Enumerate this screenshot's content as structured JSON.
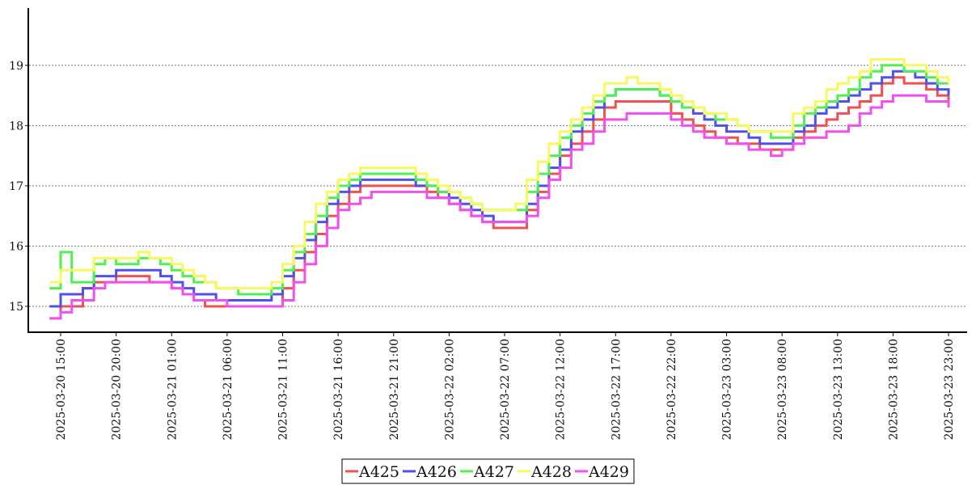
{
  "chart_data": {
    "type": "line",
    "step": true,
    "x": [
      "2025-03-20 14:00",
      "2025-03-20 15:00",
      "2025-03-20 16:00",
      "2025-03-20 17:00",
      "2025-03-20 18:00",
      "2025-03-20 19:00",
      "2025-03-20 20:00",
      "2025-03-20 21:00",
      "2025-03-20 22:00",
      "2025-03-20 23:00",
      "2025-03-21 00:00",
      "2025-03-21 01:00",
      "2025-03-21 02:00",
      "2025-03-21 03:00",
      "2025-03-21 04:00",
      "2025-03-21 05:00",
      "2025-03-21 06:00",
      "2025-03-21 07:00",
      "2025-03-21 08:00",
      "2025-03-21 09:00",
      "2025-03-21 10:00",
      "2025-03-21 11:00",
      "2025-03-21 12:00",
      "2025-03-21 13:00",
      "2025-03-21 14:00",
      "2025-03-21 15:00",
      "2025-03-21 16:00",
      "2025-03-21 17:00",
      "2025-03-21 18:00",
      "2025-03-21 19:00",
      "2025-03-21 20:00",
      "2025-03-21 21:00",
      "2025-03-21 22:00",
      "2025-03-21 23:00",
      "2025-03-22 00:00",
      "2025-03-22 01:00",
      "2025-03-22 02:00",
      "2025-03-22 03:00",
      "2025-03-22 04:00",
      "2025-03-22 05:00",
      "2025-03-22 06:00",
      "2025-03-22 07:00",
      "2025-03-22 08:00",
      "2025-03-22 09:00",
      "2025-03-22 10:00",
      "2025-03-22 11:00",
      "2025-03-22 12:00",
      "2025-03-22 13:00",
      "2025-03-22 14:00",
      "2025-03-22 15:00",
      "2025-03-22 16:00",
      "2025-03-22 17:00",
      "2025-03-22 18:00",
      "2025-03-22 19:00",
      "2025-03-22 20:00",
      "2025-03-22 21:00",
      "2025-03-22 22:00",
      "2025-03-22 23:00",
      "2025-03-23 00:00",
      "2025-03-23 01:00",
      "2025-03-23 02:00",
      "2025-03-23 03:00",
      "2025-03-23 04:00",
      "2025-03-23 05:00",
      "2025-03-23 06:00",
      "2025-03-23 07:00",
      "2025-03-23 08:00",
      "2025-03-23 09:00",
      "2025-03-23 10:00",
      "2025-03-23 11:00",
      "2025-03-23 12:00",
      "2025-03-23 13:00",
      "2025-03-23 14:00",
      "2025-03-23 15:00",
      "2025-03-23 16:00",
      "2025-03-23 17:00",
      "2025-03-23 18:00",
      "2025-03-23 19:00",
      "2025-03-23 20:00",
      "2025-03-23 21:00",
      "2025-03-23 22:00",
      "2025-03-23 23:00"
    ],
    "xticks": [
      "2025-03-20 15:00",
      "2025-03-20 20:00",
      "2025-03-21 01:00",
      "2025-03-21 06:00",
      "2025-03-21 11:00",
      "2025-03-21 16:00",
      "2025-03-21 21:00",
      "2025-03-22 02:00",
      "2025-03-22 07:00",
      "2025-03-22 12:00",
      "2025-03-22 17:00",
      "2025-03-22 22:00",
      "2025-03-23 03:00",
      "2025-03-23 08:00",
      "2025-03-23 13:00",
      "2025-03-23 18:00",
      "2025-03-23 23:00"
    ],
    "series": [
      {
        "name": "A425",
        "color": "#f05050",
        "values": [
          14.8,
          15.0,
          15.0,
          15.3,
          15.4,
          15.4,
          15.5,
          15.5,
          15.5,
          15.4,
          15.4,
          15.3,
          15.2,
          15.1,
          15.0,
          15.0,
          15.0,
          15.0,
          15.0,
          15.0,
          15.0,
          15.3,
          15.6,
          15.9,
          16.2,
          16.5,
          16.7,
          16.9,
          17.0,
          17.0,
          17.0,
          17.0,
          17.0,
          17.0,
          16.9,
          16.8,
          16.7,
          16.6,
          16.5,
          16.4,
          16.3,
          16.3,
          16.3,
          16.6,
          16.9,
          17.2,
          17.5,
          17.7,
          17.9,
          18.1,
          18.3,
          18.4,
          18.4,
          18.4,
          18.4,
          18.4,
          18.2,
          18.1,
          18.0,
          17.9,
          17.8,
          17.8,
          17.7,
          17.7,
          17.6,
          17.6,
          17.6,
          17.8,
          17.9,
          18.0,
          18.1,
          18.2,
          18.3,
          18.4,
          18.5,
          18.7,
          18.8,
          18.7,
          18.7,
          18.6,
          18.5,
          18.4
        ]
      },
      {
        "name": "A426",
        "color": "#5050f0",
        "values": [
          15.0,
          15.2,
          15.2,
          15.3,
          15.5,
          15.5,
          15.6,
          15.6,
          15.6,
          15.6,
          15.5,
          15.4,
          15.3,
          15.2,
          15.2,
          15.1,
          15.1,
          15.1,
          15.1,
          15.1,
          15.2,
          15.5,
          15.8,
          16.1,
          16.4,
          16.7,
          16.9,
          17.0,
          17.1,
          17.1,
          17.1,
          17.1,
          17.1,
          17.0,
          17.0,
          16.9,
          16.8,
          16.7,
          16.6,
          16.5,
          16.4,
          16.4,
          16.4,
          16.7,
          17.0,
          17.3,
          17.6,
          17.9,
          18.1,
          18.3,
          18.5,
          18.6,
          18.6,
          18.6,
          18.6,
          18.5,
          18.4,
          18.3,
          18.2,
          18.1,
          18.0,
          17.9,
          17.9,
          17.8,
          17.7,
          17.7,
          17.7,
          17.9,
          18.0,
          18.2,
          18.3,
          18.4,
          18.5,
          18.6,
          18.7,
          18.8,
          18.9,
          18.9,
          18.8,
          18.7,
          18.6,
          18.5
        ]
      },
      {
        "name": "A427",
        "color": "#50f050",
        "values": [
          15.3,
          15.9,
          15.4,
          15.4,
          15.7,
          15.8,
          15.7,
          15.7,
          15.8,
          15.8,
          15.7,
          15.6,
          15.5,
          15.4,
          15.4,
          15.3,
          15.3,
          15.2,
          15.2,
          15.2,
          15.3,
          15.6,
          15.9,
          16.2,
          16.5,
          16.8,
          17.0,
          17.1,
          17.2,
          17.2,
          17.2,
          17.2,
          17.2,
          17.1,
          17.0,
          16.9,
          16.9,
          16.8,
          16.7,
          16.6,
          16.6,
          16.6,
          16.6,
          16.9,
          17.2,
          17.5,
          17.8,
          18.0,
          18.2,
          18.4,
          18.5,
          18.6,
          18.6,
          18.6,
          18.6,
          18.5,
          18.4,
          18.3,
          18.3,
          18.2,
          18.1,
          18.1,
          18.0,
          17.9,
          17.9,
          17.8,
          17.8,
          18.0,
          18.2,
          18.3,
          18.4,
          18.5,
          18.6,
          18.8,
          18.9,
          19.0,
          19.0,
          18.9,
          18.9,
          18.8,
          18.7,
          18.7
        ]
      },
      {
        "name": "A428",
        "color": "#f8f860",
        "values": [
          15.4,
          15.6,
          15.6,
          15.6,
          15.8,
          15.8,
          15.8,
          15.8,
          15.9,
          15.8,
          15.8,
          15.7,
          15.6,
          15.5,
          15.4,
          15.3,
          15.3,
          15.3,
          15.3,
          15.3,
          15.4,
          15.7,
          16.0,
          16.4,
          16.7,
          16.9,
          17.1,
          17.2,
          17.3,
          17.3,
          17.3,
          17.3,
          17.3,
          17.2,
          17.1,
          17.0,
          16.9,
          16.8,
          16.7,
          16.6,
          16.6,
          16.6,
          16.7,
          17.1,
          17.4,
          17.7,
          17.9,
          18.1,
          18.3,
          18.5,
          18.7,
          18.7,
          18.8,
          18.7,
          18.7,
          18.6,
          18.5,
          18.4,
          18.3,
          18.2,
          18.2,
          18.1,
          18.0,
          17.9,
          17.9,
          17.9,
          17.9,
          18.2,
          18.3,
          18.4,
          18.6,
          18.7,
          18.8,
          18.9,
          19.1,
          19.1,
          19.1,
          19.0,
          19.0,
          18.9,
          18.8,
          18.7
        ]
      },
      {
        "name": "A429",
        "color": "#f050f0",
        "values": [
          14.8,
          14.9,
          15.1,
          15.1,
          15.3,
          15.4,
          15.4,
          15.4,
          15.4,
          15.4,
          15.4,
          15.3,
          15.2,
          15.1,
          15.1,
          15.1,
          15.0,
          15.0,
          15.0,
          15.0,
          15.0,
          15.1,
          15.4,
          15.7,
          16.0,
          16.3,
          16.6,
          16.7,
          16.8,
          16.9,
          16.9,
          16.9,
          16.9,
          16.9,
          16.8,
          16.8,
          16.7,
          16.6,
          16.5,
          16.4,
          16.4,
          16.4,
          16.4,
          16.5,
          16.8,
          17.1,
          17.3,
          17.6,
          17.7,
          17.9,
          18.1,
          18.1,
          18.2,
          18.2,
          18.2,
          18.2,
          18.1,
          18.0,
          17.9,
          17.8,
          17.8,
          17.7,
          17.7,
          17.6,
          17.6,
          17.5,
          17.6,
          17.7,
          17.8,
          17.8,
          17.9,
          17.9,
          18.0,
          18.2,
          18.3,
          18.4,
          18.5,
          18.5,
          18.5,
          18.4,
          18.4,
          18.3
        ]
      }
    ],
    "ylim": [
      14.57,
      19.95
    ],
    "yticks": [
      15,
      16,
      17,
      18,
      19
    ],
    "grid": true,
    "legend": "bottom"
  }
}
